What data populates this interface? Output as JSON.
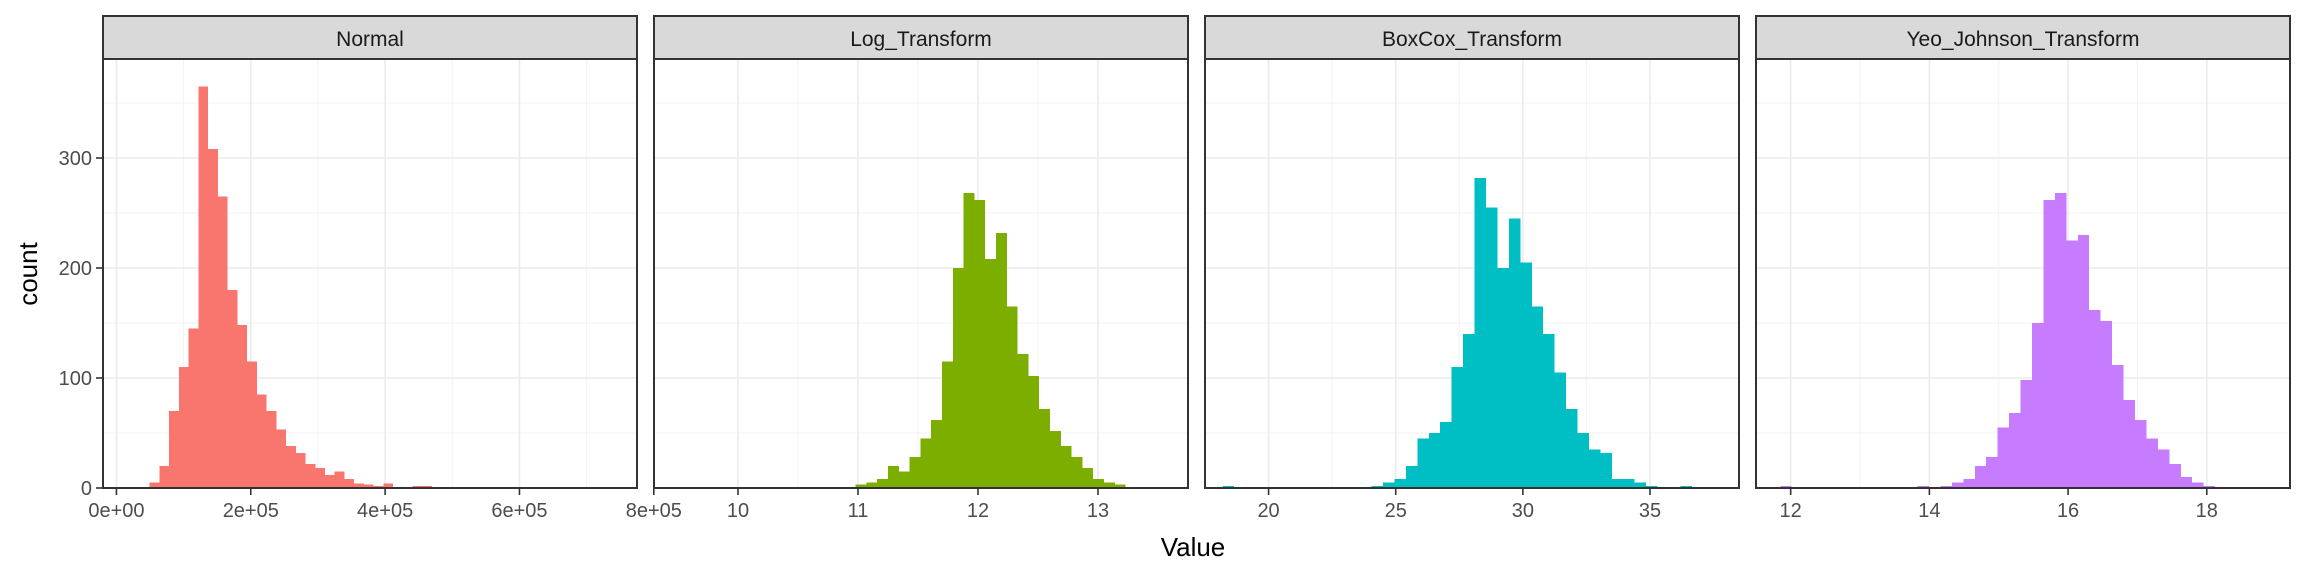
{
  "chart_data": {
    "type": "bar",
    "subtype": "faceted-histogram",
    "xlabel": "Value",
    "ylabel": "count",
    "ylim": [
      0,
      390
    ],
    "yticks": [
      0,
      100,
      200,
      300
    ],
    "grid": true,
    "legend": "none",
    "facets": [
      {
        "name": "Normal",
        "color": "#F8766D",
        "xlim": [
          -20000,
          775000
        ],
        "xticks": [
          0,
          200000,
          400000,
          600000,
          800000
        ],
        "xtick_labels": [
          "0e+00",
          "2e+05",
          "4e+05",
          "6e+05",
          "8e+05"
        ],
        "bin_start": 35000,
        "bin_width": 14500,
        "counts": [
          1,
          5,
          20,
          70,
          110,
          145,
          365,
          308,
          265,
          180,
          148,
          115,
          85,
          70,
          53,
          38,
          32,
          22,
          18,
          12,
          15,
          8,
          4,
          3,
          2,
          4,
          1,
          1,
          2,
          2,
          1,
          0,
          1,
          1,
          1,
          0,
          0,
          0,
          0,
          0,
          0,
          0,
          0,
          0,
          0,
          0,
          0,
          1
        ]
      },
      {
        "name": "Log_Transform",
        "color": "#7CAE00",
        "xlim": [
          9.3,
          13.75
        ],
        "xticks": [
          10,
          11,
          12,
          13
        ],
        "xtick_labels": [
          "10",
          "11",
          "12",
          "13"
        ],
        "bin_start": 9.45,
        "bin_width": 0.09,
        "counts": [
          1,
          1,
          0,
          0,
          0,
          0,
          0,
          0,
          0,
          0,
          0,
          0,
          1,
          1,
          1,
          1,
          1,
          3,
          5,
          8,
          20,
          15,
          28,
          45,
          62,
          115,
          200,
          268,
          262,
          208,
          232,
          165,
          122,
          102,
          72,
          52,
          38,
          28,
          18,
          8,
          5,
          3,
          1,
          1
        ]
      },
      {
        "name": "BoxCox_Transform",
        "color": "#00BFC4",
        "xlim": [
          17.5,
          38.5
        ],
        "xticks": [
          20,
          25,
          30,
          35
        ],
        "xtick_labels": [
          "20",
          "25",
          "30",
          "35"
        ],
        "bin_start": 18.2,
        "bin_width": 0.45,
        "counts": [
          2,
          0,
          0,
          0,
          0,
          0,
          0,
          0,
          0,
          1,
          1,
          1,
          1,
          2,
          5,
          8,
          20,
          45,
          50,
          60,
          110,
          140,
          282,
          255,
          200,
          245,
          205,
          165,
          140,
          105,
          72,
          50,
          35,
          32,
          8,
          8,
          5,
          2,
          1,
          0,
          2
        ]
      },
      {
        "name": "Yeo_Johnson_Transform",
        "color": "#C77CFF",
        "xlim": [
          11.5,
          19.2
        ],
        "xticks": [
          12,
          14,
          16,
          18
        ],
        "xtick_labels": [
          "12",
          "14",
          "16",
          "18"
        ],
        "bin_start": 11.85,
        "bin_width": 0.165,
        "counts": [
          2,
          0,
          0,
          0,
          0,
          0,
          0,
          0,
          0,
          0,
          0,
          1,
          2,
          1,
          2,
          5,
          8,
          20,
          28,
          55,
          68,
          98,
          150,
          262,
          268,
          225,
          230,
          162,
          152,
          112,
          80,
          62,
          45,
          35,
          22,
          10,
          5,
          2,
          1,
          0
        ]
      }
    ]
  }
}
